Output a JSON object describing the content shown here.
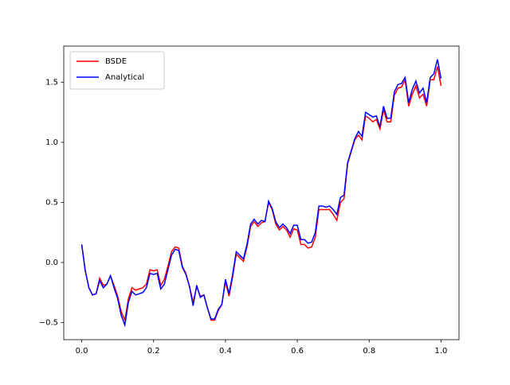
{
  "chart_data": {
    "type": "line",
    "x": [
      0,
      0.01,
      0.02,
      0.03,
      0.04,
      0.05,
      0.06,
      0.07,
      0.08,
      0.09,
      0.1,
      0.11,
      0.12,
      0.13,
      0.14,
      0.15,
      0.16,
      0.17,
      0.18,
      0.19,
      0.2,
      0.21,
      0.22,
      0.23,
      0.24,
      0.25,
      0.26,
      0.27,
      0.28,
      0.29,
      0.3,
      0.31,
      0.32,
      0.33,
      0.34,
      0.35,
      0.36,
      0.37,
      0.38,
      0.39,
      0.4,
      0.41,
      0.42,
      0.43,
      0.44,
      0.45,
      0.46,
      0.47,
      0.48,
      0.49,
      0.5,
      0.51,
      0.52,
      0.53,
      0.54,
      0.55,
      0.56,
      0.57,
      0.58,
      0.59,
      0.6,
      0.61,
      0.62,
      0.63,
      0.64,
      0.65,
      0.66,
      0.67,
      0.68,
      0.69,
      0.7,
      0.71,
      0.72,
      0.73,
      0.74,
      0.75,
      0.76,
      0.77,
      0.78,
      0.79,
      0.8,
      0.81,
      0.82,
      0.83,
      0.84,
      0.85,
      0.86,
      0.87,
      0.88,
      0.89,
      0.9,
      0.91,
      0.92,
      0.93,
      0.94,
      0.95,
      0.96,
      0.97,
      0.98,
      0.99,
      1
    ],
    "series": [
      {
        "name": "BSDE",
        "color": "#ff0000",
        "values": [
          0.15,
          -0.07,
          -0.21,
          -0.27,
          -0.26,
          -0.13,
          -0.19,
          -0.18,
          -0.11,
          -0.19,
          -0.28,
          -0.41,
          -0.48,
          -0.3,
          -0.21,
          -0.23,
          -0.22,
          -0.21,
          -0.18,
          -0.06,
          -0.07,
          -0.06,
          -0.19,
          -0.14,
          -0.03,
          0.09,
          0.13,
          0.12,
          -0.03,
          -0.09,
          -0.2,
          -0.33,
          -0.2,
          -0.28,
          -0.27,
          -0.38,
          -0.48,
          -0.48,
          -0.4,
          -0.35,
          -0.16,
          -0.28,
          -0.12,
          0.07,
          0.04,
          0.01,
          0.13,
          0.3,
          0.34,
          0.3,
          0.33,
          0.34,
          0.5,
          0.44,
          0.32,
          0.27,
          0.3,
          0.27,
          0.21,
          0.28,
          0.27,
          0.15,
          0.15,
          0.12,
          0.13,
          0.21,
          0.44,
          0.44,
          0.44,
          0.44,
          0.4,
          0.35,
          0.5,
          0.53,
          0.82,
          0.92,
          1.02,
          1.06,
          1.02,
          1.22,
          1.2,
          1.17,
          1.19,
          1.11,
          1.27,
          1.17,
          1.17,
          1.39,
          1.45,
          1.46,
          1.52,
          1.3,
          1.4,
          1.47,
          1.37,
          1.4,
          1.3,
          1.52,
          1.52,
          1.63,
          1.47
        ]
      },
      {
        "name": "Analytical",
        "color": "#0000ff",
        "values": [
          0.15,
          -0.07,
          -0.21,
          -0.27,
          -0.26,
          -0.15,
          -0.21,
          -0.18,
          -0.11,
          -0.21,
          -0.3,
          -0.44,
          -0.52,
          -0.33,
          -0.24,
          -0.27,
          -0.26,
          -0.25,
          -0.21,
          -0.09,
          -0.1,
          -0.09,
          -0.22,
          -0.18,
          -0.06,
          0.06,
          0.11,
          0.1,
          -0.04,
          -0.1,
          -0.2,
          -0.36,
          -0.19,
          -0.29,
          -0.27,
          -0.38,
          -0.47,
          -0.47,
          -0.39,
          -0.35,
          -0.14,
          -0.26,
          -0.1,
          0.09,
          0.06,
          0.03,
          0.15,
          0.32,
          0.36,
          0.32,
          0.35,
          0.34,
          0.51,
          0.45,
          0.34,
          0.29,
          0.32,
          0.29,
          0.24,
          0.31,
          0.31,
          0.19,
          0.19,
          0.16,
          0.17,
          0.25,
          0.47,
          0.47,
          0.46,
          0.47,
          0.44,
          0.4,
          0.54,
          0.56,
          0.83,
          0.93,
          1.03,
          1.09,
          1.05,
          1.25,
          1.23,
          1.21,
          1.22,
          1.13,
          1.3,
          1.2,
          1.2,
          1.42,
          1.48,
          1.49,
          1.54,
          1.33,
          1.44,
          1.51,
          1.41,
          1.45,
          1.33,
          1.54,
          1.57,
          1.69,
          1.53
        ]
      }
    ],
    "xlim": [
      -0.05,
      1.05
    ],
    "ylim": [
      -0.642,
      1.8
    ],
    "xticks": [
      {
        "value": 0,
        "label": "0.0"
      },
      0.2,
      0.4,
      0.6,
      0.8,
      {
        "value": 1,
        "label": "1.0"
      }
    ],
    "yticks": [
      {
        "value": -0.5,
        "label": "−0.5"
      },
      {
        "value": 0,
        "label": "0.0"
      },
      0.5,
      {
        "value": 1,
        "label": "1.0"
      },
      1.5
    ],
    "legend": "upper left",
    "grid": false
  }
}
